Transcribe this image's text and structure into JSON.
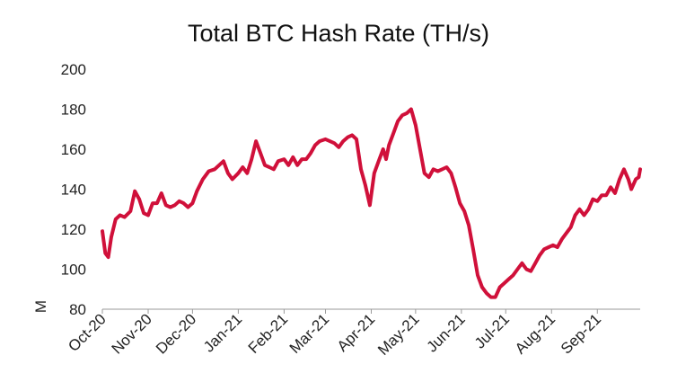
{
  "chart_data": {
    "type": "line",
    "title": "Total BTC Hash Rate (TH/s)",
    "xlabel": "",
    "ylabel": "M",
    "ylim": [
      80,
      200
    ],
    "yticks": [
      80,
      100,
      120,
      140,
      160,
      180,
      200
    ],
    "x_range": [
      "2020-10-01",
      "2021-09-30"
    ],
    "xtick_labels": [
      {
        "date": "2020-10-01",
        "label": "Oct-20"
      },
      {
        "date": "2020-11-01",
        "label": "Nov-20"
      },
      {
        "date": "2020-12-01",
        "label": "Dec-20"
      },
      {
        "date": "2021-01-01",
        "label": "Jan-21"
      },
      {
        "date": "2021-02-01",
        "label": "Feb-21"
      },
      {
        "date": "2021-03-01",
        "label": "Mar-21"
      },
      {
        "date": "2021-04-01",
        "label": "Apr-21"
      },
      {
        "date": "2021-05-01",
        "label": "May-21"
      },
      {
        "date": "2021-06-01",
        "label": "Jun-21"
      },
      {
        "date": "2021-07-01",
        "label": "Jul-21"
      },
      {
        "date": "2021-08-01",
        "label": "Aug-21"
      },
      {
        "date": "2021-09-01",
        "label": "Sep-21"
      }
    ],
    "grid": false,
    "legend": "none",
    "series": [
      {
        "color": "#d0103a",
        "points": [
          [
            "2020-10-01",
            119
          ],
          [
            "2020-10-03",
            108
          ],
          [
            "2020-10-05",
            106
          ],
          [
            "2020-10-07",
            116
          ],
          [
            "2020-10-10",
            125
          ],
          [
            "2020-10-13",
            127
          ],
          [
            "2020-10-16",
            126
          ],
          [
            "2020-10-20",
            129
          ],
          [
            "2020-10-23",
            139
          ],
          [
            "2020-10-26",
            135
          ],
          [
            "2020-10-29",
            128
          ],
          [
            "2020-11-01",
            127
          ],
          [
            "2020-11-04",
            133
          ],
          [
            "2020-11-07",
            133
          ],
          [
            "2020-11-10",
            138
          ],
          [
            "2020-11-13",
            132
          ],
          [
            "2020-11-16",
            131
          ],
          [
            "2020-11-19",
            132
          ],
          [
            "2020-11-22",
            134
          ],
          [
            "2020-11-25",
            133
          ],
          [
            "2020-11-28",
            131
          ],
          [
            "2020-12-01",
            133
          ],
          [
            "2020-12-04",
            139
          ],
          [
            "2020-12-08",
            145
          ],
          [
            "2020-12-12",
            149
          ],
          [
            "2020-12-16",
            150
          ],
          [
            "2020-12-19",
            152
          ],
          [
            "2020-12-22",
            154
          ],
          [
            "2020-12-25",
            148
          ],
          [
            "2020-12-28",
            145
          ],
          [
            "2021-01-01",
            148
          ],
          [
            "2021-01-04",
            151
          ],
          [
            "2021-01-07",
            148
          ],
          [
            "2021-01-10",
            155
          ],
          [
            "2021-01-13",
            164
          ],
          [
            "2021-01-16",
            158
          ],
          [
            "2021-01-19",
            152
          ],
          [
            "2021-01-22",
            151
          ],
          [
            "2021-01-25",
            150
          ],
          [
            "2021-01-28",
            154
          ],
          [
            "2021-02-01",
            155
          ],
          [
            "2021-02-04",
            152
          ],
          [
            "2021-02-07",
            156
          ],
          [
            "2021-02-10",
            152
          ],
          [
            "2021-02-13",
            155
          ],
          [
            "2021-02-16",
            155
          ],
          [
            "2021-02-19",
            158
          ],
          [
            "2021-02-22",
            162
          ],
          [
            "2021-02-25",
            164
          ],
          [
            "2021-03-01",
            165
          ],
          [
            "2021-03-04",
            164
          ],
          [
            "2021-03-07",
            163
          ],
          [
            "2021-03-10",
            161
          ],
          [
            "2021-03-13",
            164
          ],
          [
            "2021-03-16",
            166
          ],
          [
            "2021-03-19",
            167
          ],
          [
            "2021-03-22",
            165
          ],
          [
            "2021-03-25",
            150
          ],
          [
            "2021-03-28",
            142
          ],
          [
            "2021-03-31",
            132
          ],
          [
            "2021-04-03",
            148
          ],
          [
            "2021-04-06",
            154
          ],
          [
            "2021-04-09",
            160
          ],
          [
            "2021-04-11",
            155
          ],
          [
            "2021-04-13",
            162
          ],
          [
            "2021-04-16",
            168
          ],
          [
            "2021-04-19",
            174
          ],
          [
            "2021-04-22",
            177
          ],
          [
            "2021-04-25",
            178
          ],
          [
            "2021-04-28",
            180
          ],
          [
            "2021-05-01",
            172
          ],
          [
            "2021-05-04",
            160
          ],
          [
            "2021-05-07",
            148
          ],
          [
            "2021-05-10",
            146
          ],
          [
            "2021-05-13",
            150
          ],
          [
            "2021-05-16",
            149
          ],
          [
            "2021-05-19",
            150
          ],
          [
            "2021-05-22",
            151
          ],
          [
            "2021-05-25",
            148
          ],
          [
            "2021-05-28",
            141
          ],
          [
            "2021-05-31",
            133
          ],
          [
            "2021-06-03",
            129
          ],
          [
            "2021-06-06",
            122
          ],
          [
            "2021-06-09",
            110
          ],
          [
            "2021-06-12",
            97
          ],
          [
            "2021-06-15",
            91
          ],
          [
            "2021-06-18",
            88
          ],
          [
            "2021-06-21",
            86
          ],
          [
            "2021-06-24",
            86
          ],
          [
            "2021-06-27",
            91
          ],
          [
            "2021-06-30",
            93
          ],
          [
            "2021-07-03",
            95
          ],
          [
            "2021-07-06",
            97
          ],
          [
            "2021-07-09",
            100
          ],
          [
            "2021-07-12",
            103
          ],
          [
            "2021-07-15",
            100
          ],
          [
            "2021-07-18",
            99
          ],
          [
            "2021-07-21",
            103
          ],
          [
            "2021-07-24",
            107
          ],
          [
            "2021-07-27",
            110
          ],
          [
            "2021-07-30",
            111
          ],
          [
            "2021-08-02",
            112
          ],
          [
            "2021-08-05",
            111
          ],
          [
            "2021-08-08",
            115
          ],
          [
            "2021-08-11",
            118
          ],
          [
            "2021-08-14",
            121
          ],
          [
            "2021-08-17",
            127
          ],
          [
            "2021-08-20",
            130
          ],
          [
            "2021-08-23",
            127
          ],
          [
            "2021-08-26",
            130
          ],
          [
            "2021-08-29",
            135
          ],
          [
            "2021-09-01",
            134
          ],
          [
            "2021-09-04",
            137
          ],
          [
            "2021-09-07",
            137
          ],
          [
            "2021-09-10",
            141
          ],
          [
            "2021-09-13",
            138
          ],
          [
            "2021-09-16",
            145
          ],
          [
            "2021-09-19",
            150
          ],
          [
            "2021-09-22",
            145
          ],
          [
            "2021-09-24",
            140
          ],
          [
            "2021-09-27",
            145
          ],
          [
            "2021-09-29",
            146
          ],
          [
            "2021-09-30",
            150
          ]
        ]
      }
    ]
  }
}
